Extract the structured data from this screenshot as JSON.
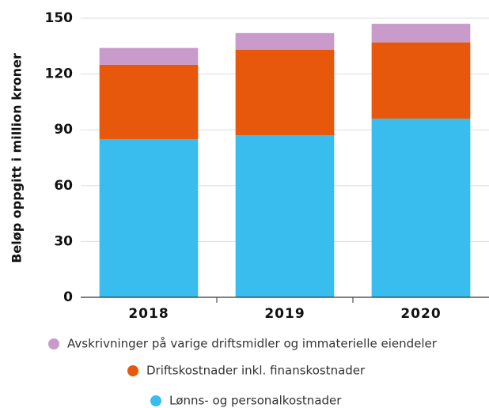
{
  "chart_data": {
    "type": "stacked_bar",
    "y_axis_label": "Beløp oppgitt i million kroner",
    "categories": [
      "2018",
      "2019",
      "2020"
    ],
    "series": [
      {
        "name": "Lønns- og personalkostnader",
        "color": "#38bdee",
        "values": [
          85,
          87,
          96
        ]
      },
      {
        "name": "Driftskostnader inkl. finanskostnader",
        "color": "#e8580c",
        "values": [
          40,
          46,
          41
        ]
      },
      {
        "name": "Avskrivninger på varige driftsmidler og immaterielle eiendeler",
        "color": "#c89bcb",
        "values": [
          9,
          9,
          10
        ]
      }
    ],
    "ylim": [
      0,
      150
    ],
    "yticks": [
      0,
      30,
      60,
      90,
      120,
      150
    ],
    "grid": true
  }
}
